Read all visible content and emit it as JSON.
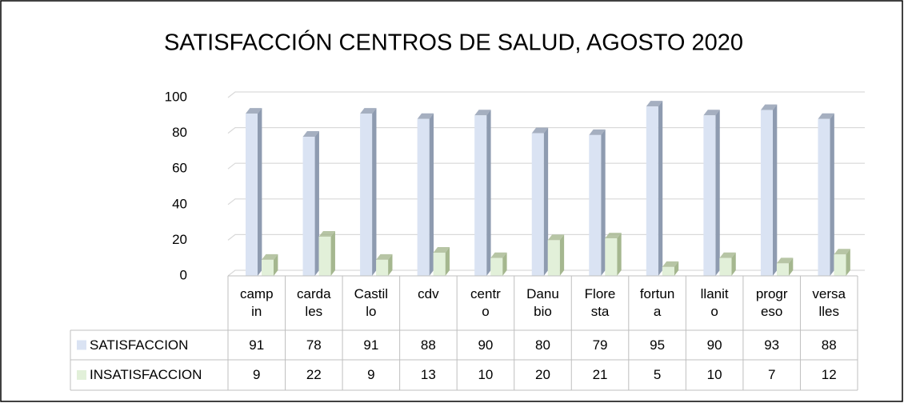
{
  "chart_data": {
    "type": "bar",
    "title": "SATISFACCIÓN CENTROS DE SALUD, AGOSTO 2020",
    "categories": [
      "campin",
      "cardales",
      "Castillo",
      "cdv",
      "centro",
      "Danubio",
      "Floresta",
      "fortuna",
      "llanito",
      "progreso",
      "versalles"
    ],
    "series": [
      {
        "name": "SATISFACCION",
        "color": "#dae3f3",
        "side_color": "#8e9bb0",
        "values": [
          91,
          78,
          91,
          88,
          90,
          80,
          79,
          95,
          90,
          93,
          88
        ]
      },
      {
        "name": "INSATISFACCION",
        "color": "#e2f0d9",
        "side_color": "#a5b78f",
        "values": [
          9,
          22,
          9,
          13,
          10,
          20,
          21,
          5,
          10,
          7,
          12
        ]
      }
    ],
    "ylim": [
      0,
      100
    ],
    "yticks": [
      0,
      20,
      40,
      60,
      80,
      100
    ],
    "grid": true
  }
}
